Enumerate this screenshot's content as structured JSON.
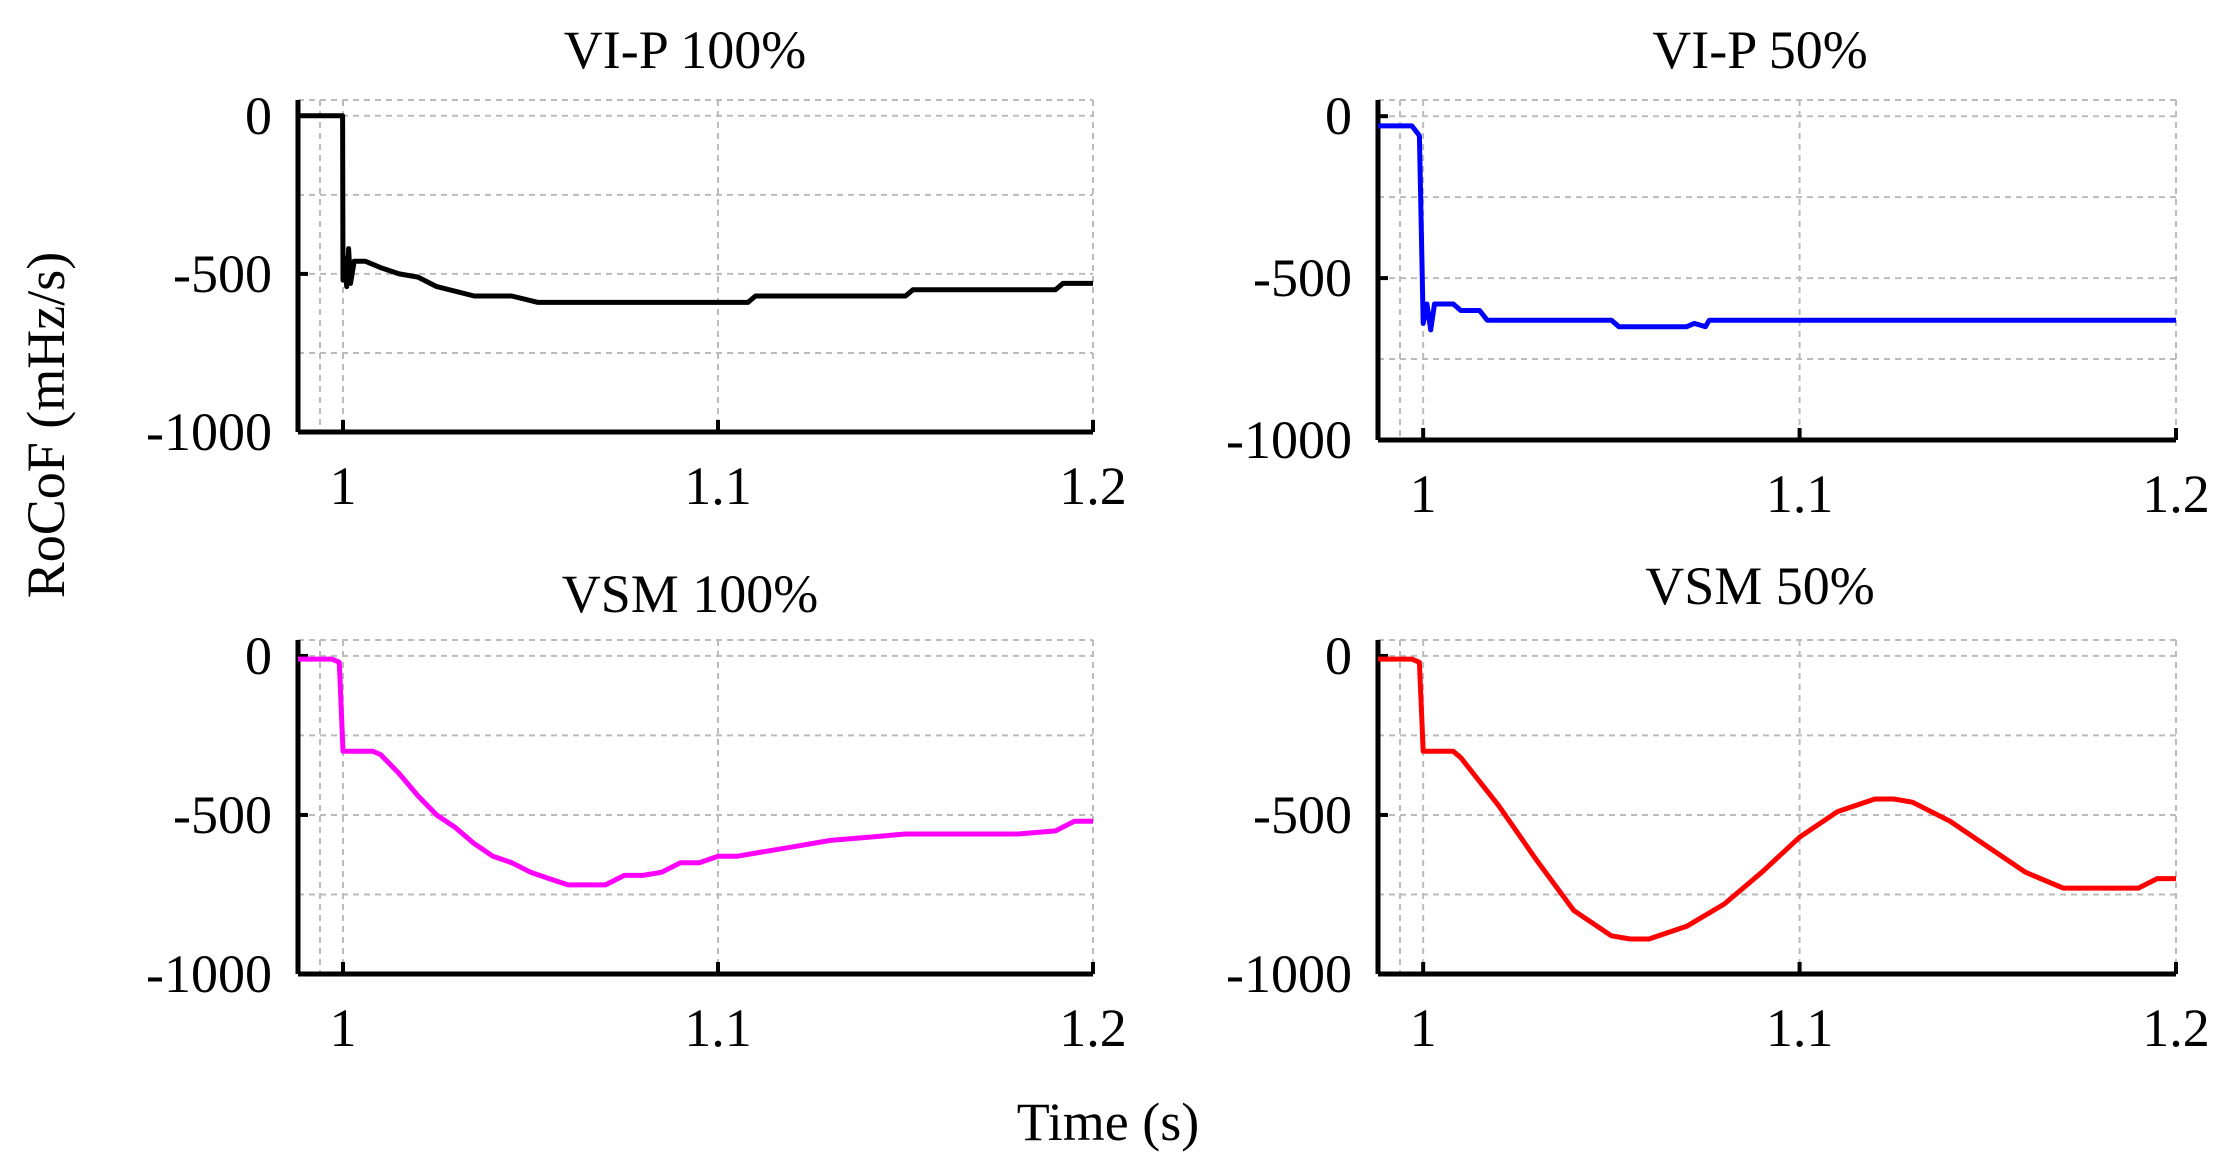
{
  "figure": {
    "shared_xlabel": "Time (s)",
    "shared_ylabel": "RoCoF (mHz/s)"
  },
  "chart_data": [
    {
      "type": "line",
      "title": "VI-P 100%",
      "color": "#000000",
      "xlim": [
        0.988,
        1.2
      ],
      "ylim": [
        -1000,
        50
      ],
      "xticks": [
        1,
        1.1,
        1.2
      ],
      "xtick_labels": [
        "1",
        "1.1",
        "1.2"
      ],
      "yticks": [
        0,
        -500,
        -1000
      ],
      "ytick_labels": [
        "0",
        "-500",
        "-1000"
      ],
      "grid": true,
      "x": [
        0.988,
        0.9999,
        1.0,
        1.0005,
        1.001,
        1.0015,
        1.002,
        1.003,
        1.006,
        1.01,
        1.015,
        1.02,
        1.025,
        1.035,
        1.045,
        1.052,
        1.06,
        1.07,
        1.08,
        1.09,
        1.1,
        1.108,
        1.11,
        1.12,
        1.13,
        1.14,
        1.15,
        1.152,
        1.17,
        1.19,
        1.192,
        1.2
      ],
      "y": [
        0,
        0,
        -520,
        -450,
        -540,
        -420,
        -530,
        -460,
        -460,
        -480,
        -500,
        -510,
        -540,
        -570,
        -570,
        -590,
        -590,
        -590,
        -590,
        -590,
        -590,
        -590,
        -570,
        -570,
        -570,
        -570,
        -570,
        -550,
        -550,
        -550,
        -530,
        -530
      ]
    },
    {
      "type": "line",
      "title": "VI-P 50%",
      "color": "#0000ff",
      "xlim": [
        0.988,
        1.2
      ],
      "ylim": [
        -1000,
        50
      ],
      "xticks": [
        1,
        1.1,
        1.2
      ],
      "xtick_labels": [
        "1",
        "1.1",
        "1.2"
      ],
      "yticks": [
        0,
        -500,
        -1000
      ],
      "ytick_labels": [
        "0",
        "-500",
        "-1000"
      ],
      "grid": true,
      "x": [
        0.988,
        0.997,
        0.999,
        1.0,
        1.001,
        1.002,
        1.003,
        1.004,
        1.008,
        1.01,
        1.015,
        1.017,
        1.03,
        1.05,
        1.052,
        1.07,
        1.072,
        1.075,
        1.076,
        1.09,
        1.1,
        1.15,
        1.2
      ],
      "y": [
        -30,
        -30,
        -60,
        -640,
        -580,
        -660,
        -580,
        -580,
        -580,
        -600,
        -600,
        -630,
        -630,
        -630,
        -650,
        -650,
        -640,
        -650,
        -630,
        -630,
        -630,
        -630,
        -630
      ]
    },
    {
      "type": "line",
      "title": "VSM 100%",
      "color": "#ff00ff",
      "xlim": [
        0.988,
        1.2
      ],
      "ylim": [
        -1000,
        50
      ],
      "xticks": [
        1,
        1.1,
        1.2
      ],
      "xtick_labels": [
        "1",
        "1.1",
        "1.2"
      ],
      "yticks": [
        0,
        -500,
        -1000
      ],
      "ytick_labels": [
        "0",
        "-500",
        "-1000"
      ],
      "grid": true,
      "x": [
        0.988,
        0.997,
        0.999,
        1.0,
        1.008,
        1.01,
        1.015,
        1.02,
        1.025,
        1.03,
        1.035,
        1.04,
        1.045,
        1.05,
        1.055,
        1.06,
        1.065,
        1.07,
        1.075,
        1.08,
        1.085,
        1.09,
        1.095,
        1.1,
        1.105,
        1.11,
        1.12,
        1.13,
        1.14,
        1.15,
        1.16,
        1.17,
        1.18,
        1.19,
        1.195,
        1.2
      ],
      "y": [
        -10,
        -10,
        -20,
        -300,
        -300,
        -310,
        -370,
        -440,
        -500,
        -540,
        -590,
        -630,
        -650,
        -680,
        -700,
        -720,
        -720,
        -720,
        -690,
        -690,
        -680,
        -650,
        -650,
        -630,
        -630,
        -620,
        -600,
        -580,
        -570,
        -560,
        -560,
        -560,
        -560,
        -550,
        -520,
        -520
      ]
    },
    {
      "type": "line",
      "title": "VSM 50%",
      "color": "#ff0000",
      "xlim": [
        0.988,
        1.2
      ],
      "ylim": [
        -1000,
        50
      ],
      "xticks": [
        1,
        1.1,
        1.2
      ],
      "xtick_labels": [
        "1",
        "1.1",
        "1.2"
      ],
      "yticks": [
        0,
        -500,
        -1000
      ],
      "ytick_labels": [
        "0",
        "-500",
        "-1000"
      ],
      "grid": true,
      "x": [
        0.988,
        0.997,
        0.999,
        1.0,
        1.008,
        1.01,
        1.02,
        1.03,
        1.04,
        1.05,
        1.055,
        1.06,
        1.065,
        1.07,
        1.08,
        1.09,
        1.1,
        1.11,
        1.12,
        1.125,
        1.13,
        1.14,
        1.15,
        1.16,
        1.17,
        1.18,
        1.19,
        1.195,
        1.2
      ],
      "y": [
        -10,
        -10,
        -20,
        -300,
        -300,
        -320,
        -470,
        -640,
        -800,
        -880,
        -890,
        -890,
        -870,
        -850,
        -780,
        -680,
        -570,
        -490,
        -450,
        -450,
        -460,
        -520,
        -600,
        -680,
        -730,
        -730,
        -730,
        -700,
        -700
      ]
    }
  ]
}
